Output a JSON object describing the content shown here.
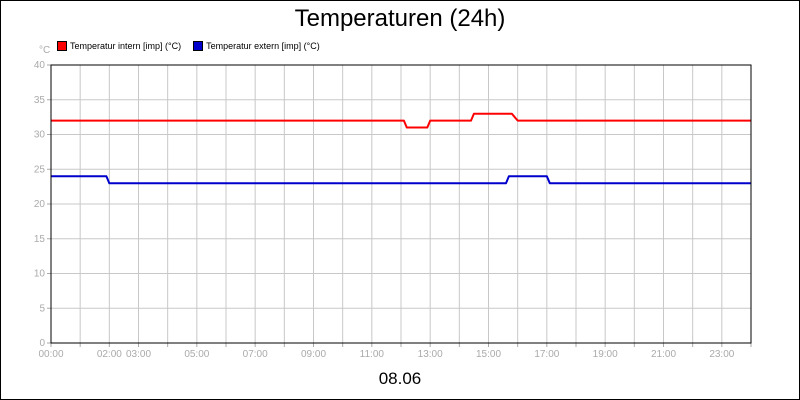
{
  "chart_data": {
    "type": "line",
    "title": "Temperaturen (24h)",
    "ylabel": "°C",
    "xlabel": "08.06",
    "ylim": [
      0,
      40
    ],
    "xlim": [
      0,
      24
    ],
    "y_ticks": [
      0,
      5,
      10,
      15,
      20,
      25,
      30,
      35,
      40
    ],
    "x_ticks": [
      {
        "value": 0,
        "label": "00:00"
      },
      {
        "value": 2,
        "label": "02:00"
      },
      {
        "value": 3,
        "label": "03:00"
      },
      {
        "value": 5,
        "label": "05:00"
      },
      {
        "value": 7,
        "label": "07:00"
      },
      {
        "value": 9,
        "label": "09:00"
      },
      {
        "value": 11,
        "label": "11:00"
      },
      {
        "value": 13,
        "label": "13:00"
      },
      {
        "value": 15,
        "label": "15:00"
      },
      {
        "value": 17,
        "label": "17:00"
      },
      {
        "value": 19,
        "label": "19:00"
      },
      {
        "value": 21,
        "label": "21:00"
      },
      {
        "value": 23,
        "label": "23:00"
      }
    ],
    "grid": true,
    "legend_position": "top-left",
    "series": [
      {
        "name": "Temperatur intern [imp] (°C)",
        "color": "#ff0000",
        "x": [
          0,
          12.1,
          12.2,
          12.9,
          13.0,
          14.4,
          14.5,
          15.8,
          16.0,
          24
        ],
        "y": [
          32,
          32,
          31,
          31,
          32,
          32,
          33,
          33,
          32,
          32
        ]
      },
      {
        "name": "Temperatur extern [imp] (°C)",
        "color": "#0000cc",
        "x": [
          0,
          1.9,
          2.0,
          15.6,
          15.7,
          17.0,
          17.1,
          24
        ],
        "y": [
          24,
          24,
          23,
          23,
          24,
          24,
          23,
          23
        ]
      }
    ]
  }
}
